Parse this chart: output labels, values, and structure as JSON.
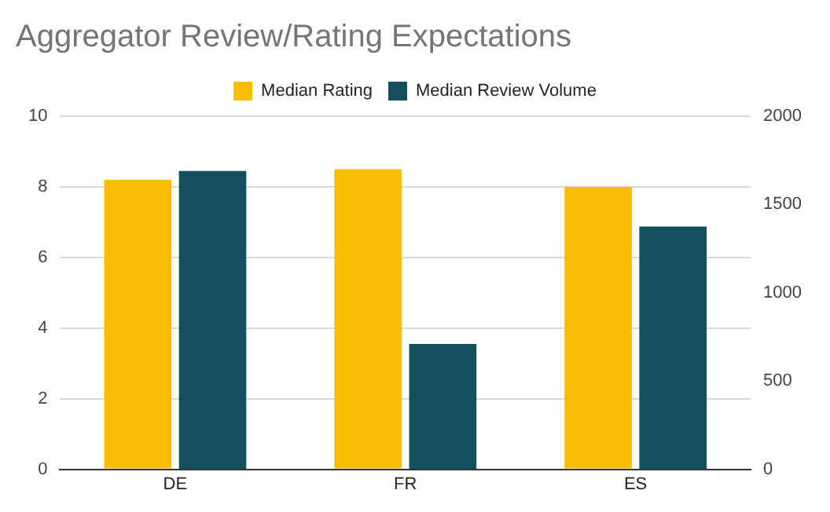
{
  "chart_data": {
    "type": "bar",
    "title": "Aggregator Review/Rating Expectations",
    "categories": [
      "DE",
      "FR",
      "ES"
    ],
    "series": [
      {
        "name": "Median Rating",
        "color": "#fbbc04",
        "values": [
          8.2,
          8.5,
          8.0
        ]
      },
      {
        "name": "Median Review Volume",
        "color": "#134f5c",
        "values": [
          1690,
          710,
          1375
        ],
        "axis": "y2"
      }
    ],
    "ylim": [
      0,
      10
    ],
    "yticks": [
      0,
      2,
      4,
      6,
      8,
      10
    ],
    "y2lim": [
      0,
      2000
    ],
    "y2ticks": [
      0,
      500,
      1000,
      1500,
      2000
    ],
    "grid": "y",
    "legend": "top"
  }
}
